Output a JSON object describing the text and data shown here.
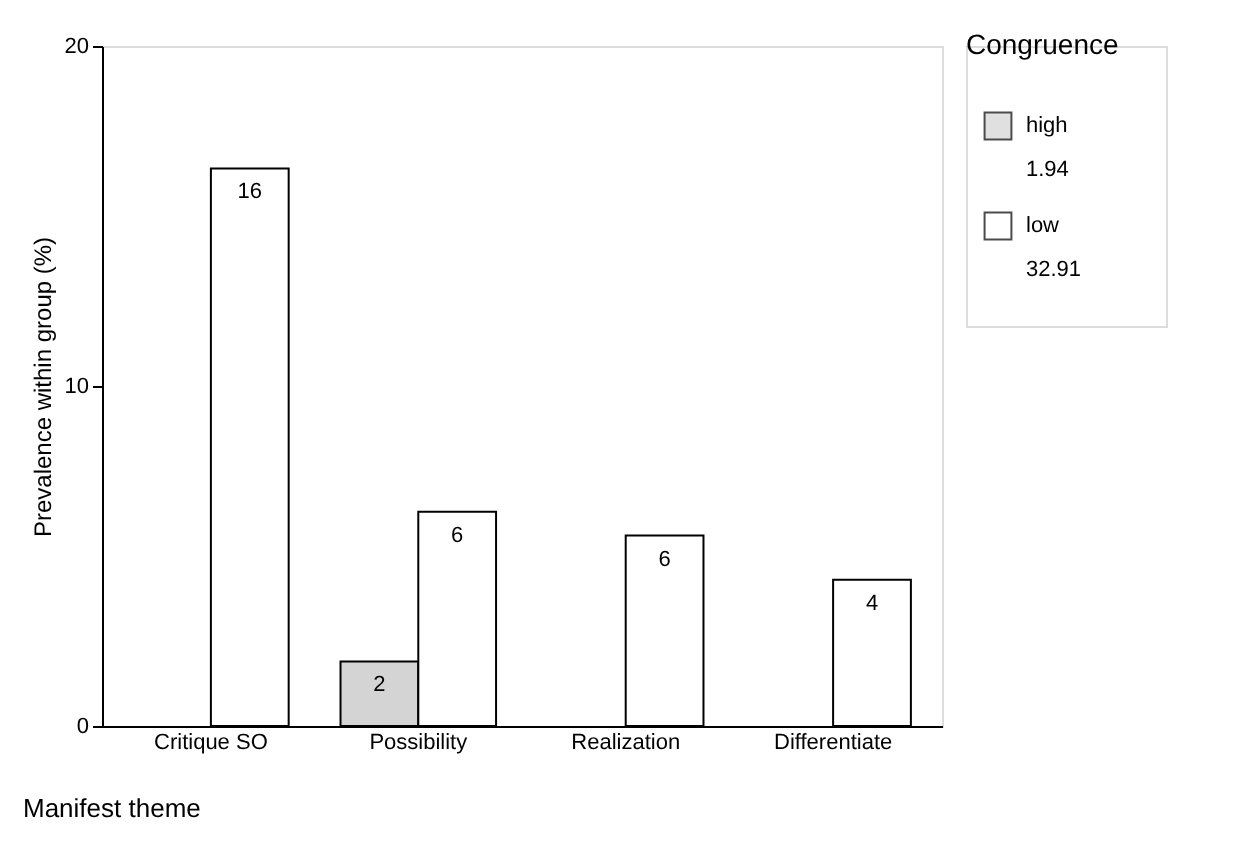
{
  "chart_data": {
    "type": "bar",
    "xlabel": "Manifest theme",
    "ylabel": "Prevalence within group (%)",
    "legend_title": "Congruence",
    "categories": [
      "Critique SO",
      "Possibility",
      "Realization",
      "Differentiate"
    ],
    "series": [
      {
        "name": "high",
        "color": "#d4d4d4",
        "values": [
          null,
          1.9,
          null,
          null
        ],
        "value_labels": [
          null,
          "2",
          null,
          null
        ]
      },
      {
        "name": "low",
        "color": "#ffffff",
        "values": [
          16.4,
          6.3,
          5.6,
          4.3
        ],
        "value_labels": [
          "16",
          "6",
          "6",
          "4"
        ]
      }
    ],
    "annotations": [
      "1.94",
      "32.91"
    ],
    "ylim": [
      0,
      20
    ],
    "yticks": [
      0,
      10,
      20
    ],
    "grid": false,
    "legend": "right"
  }
}
